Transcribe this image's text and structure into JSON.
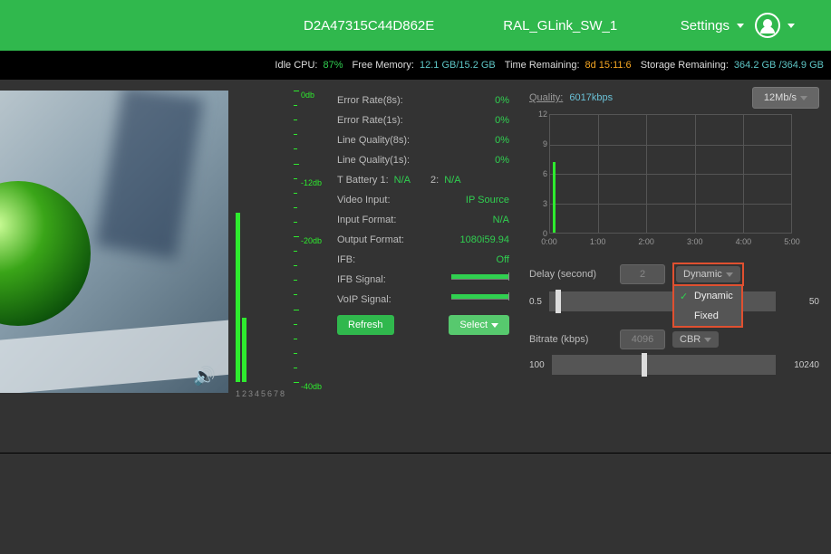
{
  "header": {
    "device_id": "D2A47315C44D862E",
    "device_name": "RAL_GLink_SW_1",
    "settings_label": "Settings"
  },
  "status": {
    "idle_cpu_label": "Idle CPU:",
    "idle_cpu_val": "87%",
    "free_mem_label": "Free Memory:",
    "free_mem_val": "12.1 GB/15.2 GB",
    "time_rem_label": "Time Remaining:",
    "time_rem_val": "8d 15:11:6",
    "storage_rem_label": "Storage Remaining:",
    "storage_rem_val": "364.2 GB /364.9 GB"
  },
  "vu": {
    "channels": [
      "1",
      "2",
      "3",
      "4",
      "5",
      "6",
      "7",
      "8"
    ],
    "levels_pct": [
      58,
      22,
      0,
      0,
      0,
      0,
      0,
      0
    ],
    "scale_labels": [
      {
        "text": "0db",
        "pos": 0
      },
      {
        "text": "-12db",
        "pos": 30
      },
      {
        "text": "-20db",
        "pos": 50
      },
      {
        "text": "-40db",
        "pos": 100
      }
    ],
    "bar_color": "#2eeb2e"
  },
  "stats": {
    "rows": [
      {
        "label": "Error Rate(8s):",
        "value": "0%"
      },
      {
        "label": "Error Rate(1s):",
        "value": "0%"
      },
      {
        "label": "Line Quality(8s):",
        "value": "0%"
      },
      {
        "label": "Line Quality(1s):",
        "value": "0%"
      }
    ],
    "batt1_label": "T Battery 1:",
    "batt1_val": "N/A",
    "batt2_label": "2:",
    "batt2_val": "N/A",
    "video_input_label": "Video Input:",
    "video_input_val": "IP Source",
    "input_format_label": "Input Format:",
    "input_format_val": "N/A",
    "output_format_label": "Output Format:",
    "output_format_val": "1080i59.94",
    "ifb_label": "IFB:",
    "ifb_val": "Off",
    "ifb_signal_label": "IFB Signal:",
    "voip_signal_label": "VoIP Signal:",
    "refresh_btn": "Refresh",
    "select_btn": "Select"
  },
  "chart": {
    "quality_label": "Quality:",
    "quality_val": "6017kbps",
    "rate_btn": "12Mb/s",
    "ylim": [
      0,
      12
    ],
    "yticks": [
      0,
      3,
      6,
      9,
      12
    ],
    "xticks": [
      "0:00",
      "1:00",
      "2:00",
      "3:00",
      "4:00",
      "5:00"
    ],
    "bars": [
      {
        "x_pct": 1.0,
        "h_pct": 60
      }
    ],
    "grid_color": "#555",
    "bar_color": "#2eeb2e"
  },
  "delay": {
    "label": "Delay (second)",
    "value": "2",
    "mode_btn": "Dynamic",
    "menu": [
      {
        "label": "Dynamic",
        "checked": true
      },
      {
        "label": "Fixed",
        "checked": false
      }
    ],
    "slider_min": "0.5",
    "slider_max": "50",
    "slider_pos_pct": 3
  },
  "bitrate": {
    "label": "Bitrate (kbps)",
    "value": "4096",
    "mode_btn": "CBR",
    "slider_min": "100",
    "slider_max": "10240",
    "slider_pos_pct": 40
  }
}
